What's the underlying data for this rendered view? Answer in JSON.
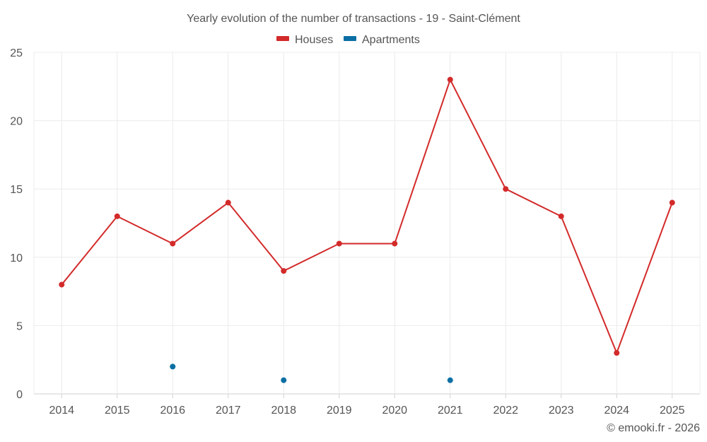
{
  "chart_data": {
    "type": "line",
    "title": "Yearly evolution of the number of transactions - 19 - Saint-Clément",
    "x": [
      "2014",
      "2015",
      "2016",
      "2017",
      "2018",
      "2019",
      "2020",
      "2021",
      "2022",
      "2023",
      "2024",
      "2025"
    ],
    "series": [
      {
        "name": "Houses",
        "color": "#d32a2a",
        "style": "line",
        "values": [
          8,
          13,
          11,
          14,
          9,
          11,
          11,
          23,
          15,
          13,
          3,
          14
        ]
      },
      {
        "name": "Apartments",
        "color": "#0b6fa4",
        "style": "points",
        "values": [
          null,
          null,
          2,
          null,
          1,
          null,
          null,
          1,
          null,
          null,
          null,
          null
        ]
      }
    ],
    "ylim": [
      0,
      25
    ],
    "yticks": [
      0,
      5,
      10,
      15,
      20,
      25
    ],
    "grid": true,
    "legend": "top-center",
    "credit": "© emooki.fr - 2026"
  }
}
